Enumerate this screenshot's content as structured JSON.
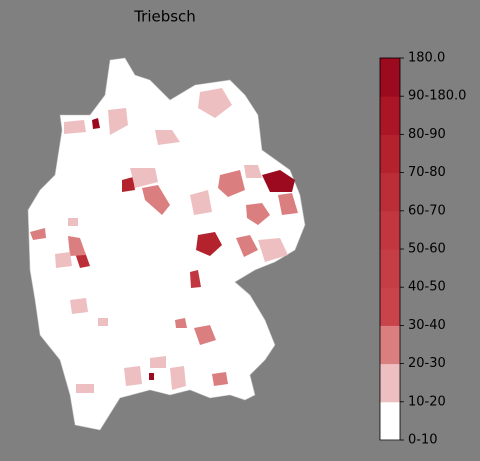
{
  "title": "Triebsch",
  "colorbar": {
    "labels": [
      "0-10",
      "10-20",
      "20-30",
      "30-40",
      "40-50",
      "50-60",
      "60-70",
      "70-80",
      "80-90",
      "90-180.0",
      "180.0"
    ],
    "colors": [
      "#ffffff",
      "#eebfc0",
      "#db7e80",
      "#c9434a",
      "#c53e46",
      "#c1363f",
      "#bb2d37",
      "#b3222d",
      "#aa1625",
      "#9b0a1e"
    ]
  }
}
